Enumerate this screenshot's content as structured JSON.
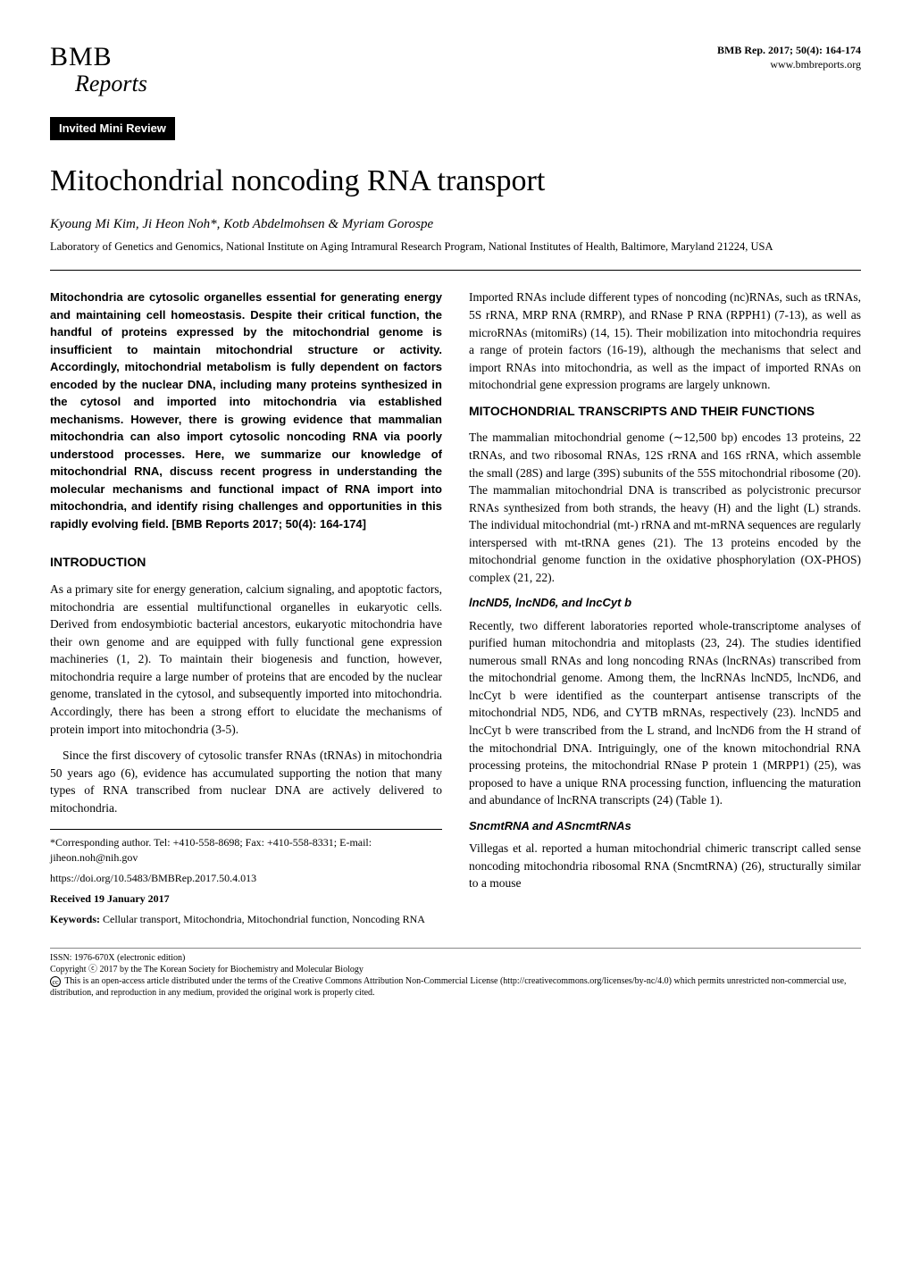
{
  "header": {
    "journal_bmb": "BMB",
    "journal_reports": "Reports",
    "issue_line": "BMB Rep. 2017; 50(4): 164-174",
    "site": "www.bmbreports.org",
    "section_badge": "Invited Mini Review"
  },
  "title": "Mitochondrial noncoding RNA transport",
  "authors_html": "Kyoung Mi Kim, Ji Heon Noh*, Kotb Abdelmohsen & Myriam Gorospe",
  "affiliation": "Laboratory of Genetics and Genomics, National Institute on Aging Intramural Research Program, National Institutes of Health, Baltimore, Maryland 21224, USA",
  "abstract": "Mitochondria are cytosolic organelles essential for generating energy and maintaining cell homeostasis. Despite their critical function, the handful of proteins expressed by the mitochondrial genome is insufficient to maintain mitochondrial structure or activity. Accordingly, mitochondrial metabolism is fully dependent on factors encoded by the nuclear DNA, including many proteins synthesized in the cytosol and imported into mitochondria via established mechanisms. However, there is growing evidence that mammalian mitochondria can also import cytosolic noncoding RNA via poorly understood processes. Here, we summarize our knowledge of mitochondrial RNA, discuss recent progress in understanding the molecular mechanisms and functional impact of RNA import into mitochondria, and identify rising challenges and opportunities in this rapidly evolving field. [BMB Reports 2017; 50(4): 164-174]",
  "left": {
    "heading_intro": "INTRODUCTION",
    "p1": "As a primary site for energy generation, calcium signaling, and apoptotic factors, mitochondria are essential multifunctional organelles in eukaryotic cells. Derived from endosymbiotic bacterial ancestors, eukaryotic mitochondria have their own genome and are equipped with fully functional gene expression machineries (1, 2). To maintain their biogenesis and function, however, mitochondria require a large number of proteins that are encoded by the nuclear genome, translated in the cytosol, and subsequently imported into mitochondria. Accordingly, there has been a strong effort to elucidate the mechanisms of protein import into mitochondria (3-5).",
    "p2": "Since the first discovery of cytosolic transfer RNAs (tRNAs) in mitochondria 50 years ago (6), evidence has accumulated supporting the notion that many types of RNA transcribed from nuclear DNA are actively delivered to mitochondria.",
    "corresponding": "*Corresponding author. Tel: +410-558-8698; Fax: +410-558-8331; E-mail: jiheon.noh@nih.gov",
    "doi": "https://doi.org/10.5483/BMBRep.2017.50.4.013",
    "received_label": "Received 19 January 2017",
    "keywords_label": "Keywords:",
    "keywords": "Cellular transport, Mitochondria, Mitochondrial function, Noncoding RNA"
  },
  "right": {
    "p_top": "Imported RNAs include different types of noncoding (nc)RNAs, such as tRNAs, 5S rRNA, MRP RNA (RMRP), and RNase P RNA (RPPH1) (7-13), as well as microRNAs (mitomiRs) (14, 15). Their mobilization into mitochondria requires a range of protein factors (16-19), although the mechanisms that select and import RNAs into mitochondria, as well as the impact of imported RNAs on mitochondrial gene expression programs are largely unknown.",
    "heading_mito": "MITOCHONDRIAL TRANSCRIPTS AND THEIR FUNCTIONS",
    "p_mito": "The mammalian mitochondrial genome (∼12,500 bp) encodes 13 proteins, 22 tRNAs, and two ribosomal RNAs, 12S rRNA and 16S rRNA, which assemble the small (28S) and large (39S) subunits of the 55S mitochondrial ribosome (20). The mammalian mitochondrial DNA is transcribed as polycistronic precursor RNAs synthesized from both strands, the heavy (H) and the light (L) strands. The individual mitochondrial (mt-) rRNA and mt-mRNA sequences are regularly interspersed with mt-tRNA genes (21). The 13 proteins encoded by the mitochondrial genome function in the oxidative phosphorylation (OX-PHOS) complex (21, 22).",
    "sub_lnc": "lncND5, lncND6, and lncCyt b",
    "p_lnc": "Recently, two different laboratories reported whole-transcriptome analyses of purified human mitochondria and mitoplasts (23, 24). The studies identified numerous small RNAs and long noncoding RNAs (lncRNAs) transcribed from the mitochondrial genome. Among them, the lncRNAs lncND5, lncND6, and lncCyt b were identified as the counterpart antisense transcripts of the mitochondrial ND5, ND6, and CYTB mRNAs, respectively (23). lncND5 and lncCyt b were transcribed from the L strand, and lncND6 from the H strand of the mitochondrial DNA. Intriguingly, one of the known mitochondrial RNA processing proteins, the mitochondrial RNase P protein 1 (MRPP1) (25), was proposed to have a unique RNA processing function, influencing the maturation and abundance of lncRNA transcripts (24) (Table 1).",
    "sub_snc": "SncmtRNA and ASncmtRNAs",
    "p_snc": "Villegas et al. reported a human mitochondrial chimeric transcript called sense noncoding mitochondria ribosomal RNA (SncmtRNA) (26), structurally similar to a mouse"
  },
  "license": {
    "issn": "ISSN: 1976-670X (electronic edition)",
    "copyright": "Copyright ⓒ 2017 by the The Korean Society for Biochemistry and Molecular Biology",
    "cc_text": "This is an open-access article distributed under the terms of the Creative Commons Attribution Non-Commercial License (http://creativecommons.org/licenses/by-nc/4.0) which permits unrestricted non-commercial use, distribution, and reproduction in any medium, provided the original work is properly cited."
  }
}
